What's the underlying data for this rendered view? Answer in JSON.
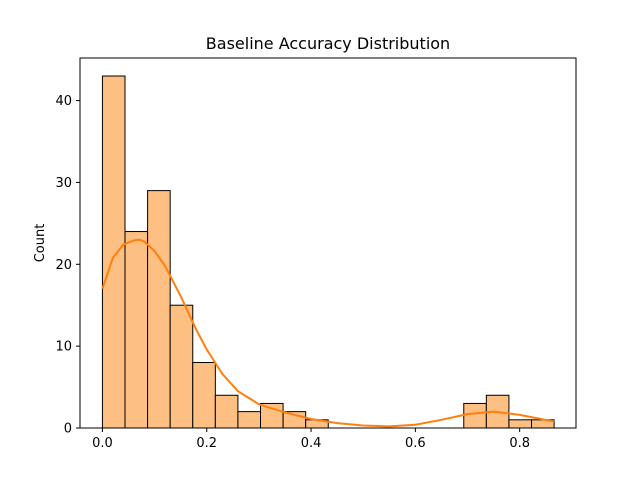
{
  "chart_data": {
    "type": "bar",
    "title": "Baseline Accuracy Distribution",
    "xlabel": "",
    "ylabel": "Count",
    "xlim": [
      -0.043,
      0.908
    ],
    "ylim": [
      0,
      45.2
    ],
    "x_ticks": [
      0.0,
      0.2,
      0.4,
      0.6,
      0.8
    ],
    "x_tick_labels": [
      "0.0",
      "0.2",
      "0.4",
      "0.6",
      "0.8"
    ],
    "y_ticks": [
      0,
      10,
      20,
      30,
      40
    ],
    "y_tick_labels": [
      "0",
      "10",
      "20",
      "30",
      "40"
    ],
    "bin_width": 0.0433,
    "bins": [
      {
        "x0": 0.0,
        "count": 43
      },
      {
        "x0": 0.0433,
        "count": 24
      },
      {
        "x0": 0.0866,
        "count": 29
      },
      {
        "x0": 0.1299,
        "count": 15
      },
      {
        "x0": 0.1732,
        "count": 8
      },
      {
        "x0": 0.2165,
        "count": 4
      },
      {
        "x0": 0.2598,
        "count": 2
      },
      {
        "x0": 0.3031,
        "count": 3
      },
      {
        "x0": 0.3464,
        "count": 2
      },
      {
        "x0": 0.3897,
        "count": 1
      },
      {
        "x0": 0.6928,
        "count": 3
      },
      {
        "x0": 0.7361,
        "count": 4
      },
      {
        "x0": 0.7794,
        "count": 1
      },
      {
        "x0": 0.8227,
        "count": 1
      }
    ],
    "kde": {
      "x": [
        0.0,
        0.02,
        0.04,
        0.06,
        0.07,
        0.08,
        0.1,
        0.12,
        0.15,
        0.18,
        0.2,
        0.23,
        0.26,
        0.3,
        0.35,
        0.4,
        0.45,
        0.5,
        0.55,
        0.6,
        0.65,
        0.7,
        0.75,
        0.8,
        0.866
      ],
      "y": [
        17,
        20.8,
        22.4,
        22.9,
        23.0,
        22.8,
        21.6,
        19.8,
        16.1,
        12.0,
        9.6,
        6.6,
        4.5,
        2.9,
        1.9,
        1.1,
        0.6,
        0.3,
        0.2,
        0.4,
        1.0,
        1.7,
        2.0,
        1.6,
        0.8
      ]
    },
    "colors": {
      "bar_fill": "#fdbf82",
      "bar_edge": "#000000",
      "kde_line": "#ff7f0e"
    },
    "grid": false,
    "legend": "none"
  }
}
